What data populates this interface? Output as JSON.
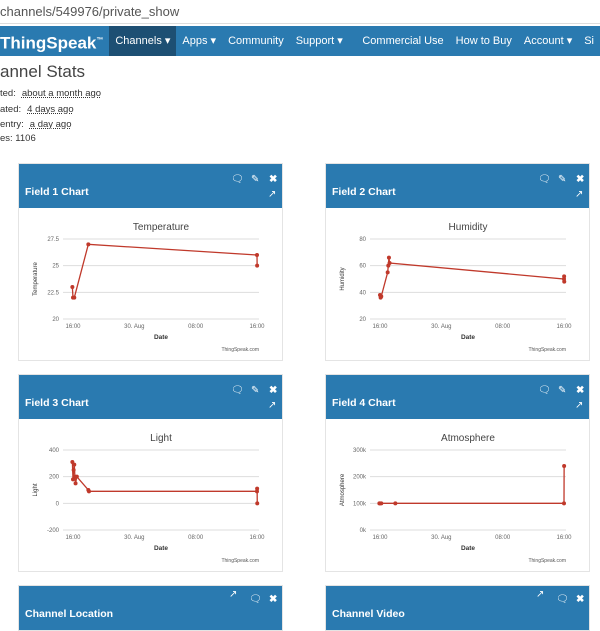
{
  "url": "channels/549976/private_show",
  "nav": {
    "brand": "ThingSpeak",
    "tm": "™",
    "items": [
      "Channels ▾",
      "Apps ▾",
      "Community",
      "Support ▾"
    ],
    "right": [
      "Commercial Use",
      "How to Buy",
      "Account ▾",
      "Si"
    ]
  },
  "page_title": "annel Stats",
  "stats": [
    {
      "label": "ted:",
      "value": "about a month ago"
    },
    {
      "label": "ated:",
      "value": "4 days ago"
    },
    {
      "label": "entry:",
      "value": "a day ago"
    },
    {
      "label": "es: 1106",
      "value": ""
    }
  ],
  "colors": {
    "header": "#2a7ab0",
    "series": "#c0392b"
  },
  "panels": [
    {
      "title": "Field 1 Chart"
    },
    {
      "title": "Field 2 Chart"
    },
    {
      "title": "Field 3 Chart"
    },
    {
      "title": "Field 4 Chart"
    },
    {
      "title": "Channel Location"
    },
    {
      "title": "Channel Video"
    }
  ],
  "chart_data": [
    {
      "type": "line",
      "title": "Temperature",
      "xlabel": "Date",
      "ylabel": "Temperature",
      "credit": "ThingSpeak.com",
      "xticks": [
        "16:00",
        "30. Aug",
        "08:00",
        "16:00"
      ],
      "yticks": [
        "20",
        "22.5",
        "25",
        "27.5"
      ],
      "ylim": [
        20,
        27.5
      ],
      "x": [
        "29 Aug 15:55",
        "29 Aug 16:00",
        "29 Aug 16:10",
        "29 Aug 18:00",
        "30 Aug 16:00",
        "30 Aug 16:01"
      ],
      "y": [
        23,
        22,
        22,
        27,
        26,
        25
      ]
    },
    {
      "type": "line",
      "title": "Humidity",
      "xlabel": "Date",
      "ylabel": "Humidity",
      "credit": "ThingSpeak.com",
      "xticks": [
        "16:00",
        "30. Aug",
        "08:00",
        "16:00"
      ],
      "yticks": [
        "20",
        "40",
        "60",
        "80"
      ],
      "ylim": [
        20,
        80
      ],
      "x": [
        "29 Aug 16:00",
        "29 Aug 16:05",
        "29 Aug 16:10",
        "29 Aug 17:00",
        "29 Aug 17:05",
        "29 Aug 17:10",
        "29 Aug 17:15",
        "30 Aug 16:00",
        "30 Aug 16:01",
        "30 Aug 16:02"
      ],
      "y": [
        38,
        36,
        37,
        55,
        60,
        66,
        62,
        50,
        52,
        48
      ]
    },
    {
      "type": "line",
      "title": "Light",
      "xlabel": "Date",
      "ylabel": "Light",
      "credit": "ThingSpeak.com",
      "xticks": [
        "16:00",
        "30. Aug",
        "08:00",
        "16:00"
      ],
      "yticks": [
        "-200",
        "0",
        "200",
        "400"
      ],
      "ylim": [
        -200,
        400
      ],
      "x": [
        "29 Aug 15:55",
        "29 Aug 16:00",
        "29 Aug 16:05",
        "29 Aug 16:10",
        "29 Aug 16:15",
        "29 Aug 16:20",
        "29 Aug 16:30",
        "29 Aug 18:00",
        "29 Aug 18:05",
        "30 Aug 16:00",
        "30 Aug 16:01",
        "30 Aug 16:02"
      ],
      "y": [
        310,
        180,
        250,
        290,
        200,
        150,
        200,
        100,
        90,
        90,
        110,
        0
      ]
    },
    {
      "type": "line",
      "title": "Atmosphere",
      "xlabel": "Date",
      "ylabel": "Atmosphere",
      "credit": "ThingSpeak.com",
      "xticks": [
        "16:00",
        "30. Aug",
        "08:00",
        "16:00"
      ],
      "yticks": [
        "0k",
        "100k",
        "200k",
        "300k"
      ],
      "ylim": [
        0,
        300000
      ],
      "x": [
        "29 Aug 15:55",
        "29 Aug 16:00",
        "29 Aug 16:10",
        "29 Aug 18:00",
        "30 Aug 16:00",
        "30 Aug 16:01"
      ],
      "y": [
        100000,
        100000,
        100000,
        100000,
        100000,
        240000
      ]
    }
  ]
}
